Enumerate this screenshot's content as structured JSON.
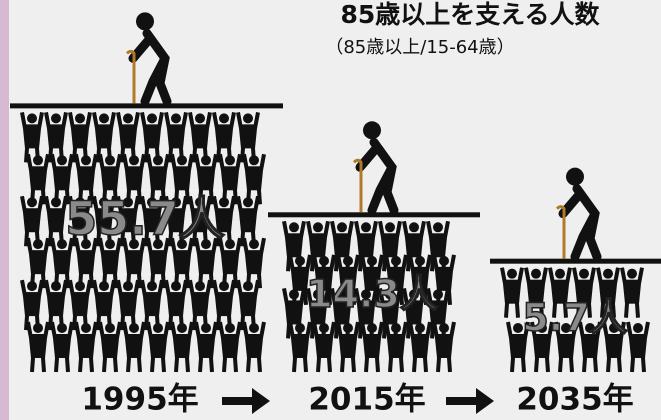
{
  "chart_data": {
    "type": "pictograph",
    "title": "85歳以上を支える人数",
    "subtitle": "（85歳以上/15-64歳）",
    "categories": [
      "1995年",
      "2015年",
      "2035年"
    ],
    "values": [
      55.7,
      14.3,
      5.7
    ],
    "value_labels": [
      "55.7人",
      "14.3人",
      "5.7人"
    ],
    "color": "#111111"
  }
}
